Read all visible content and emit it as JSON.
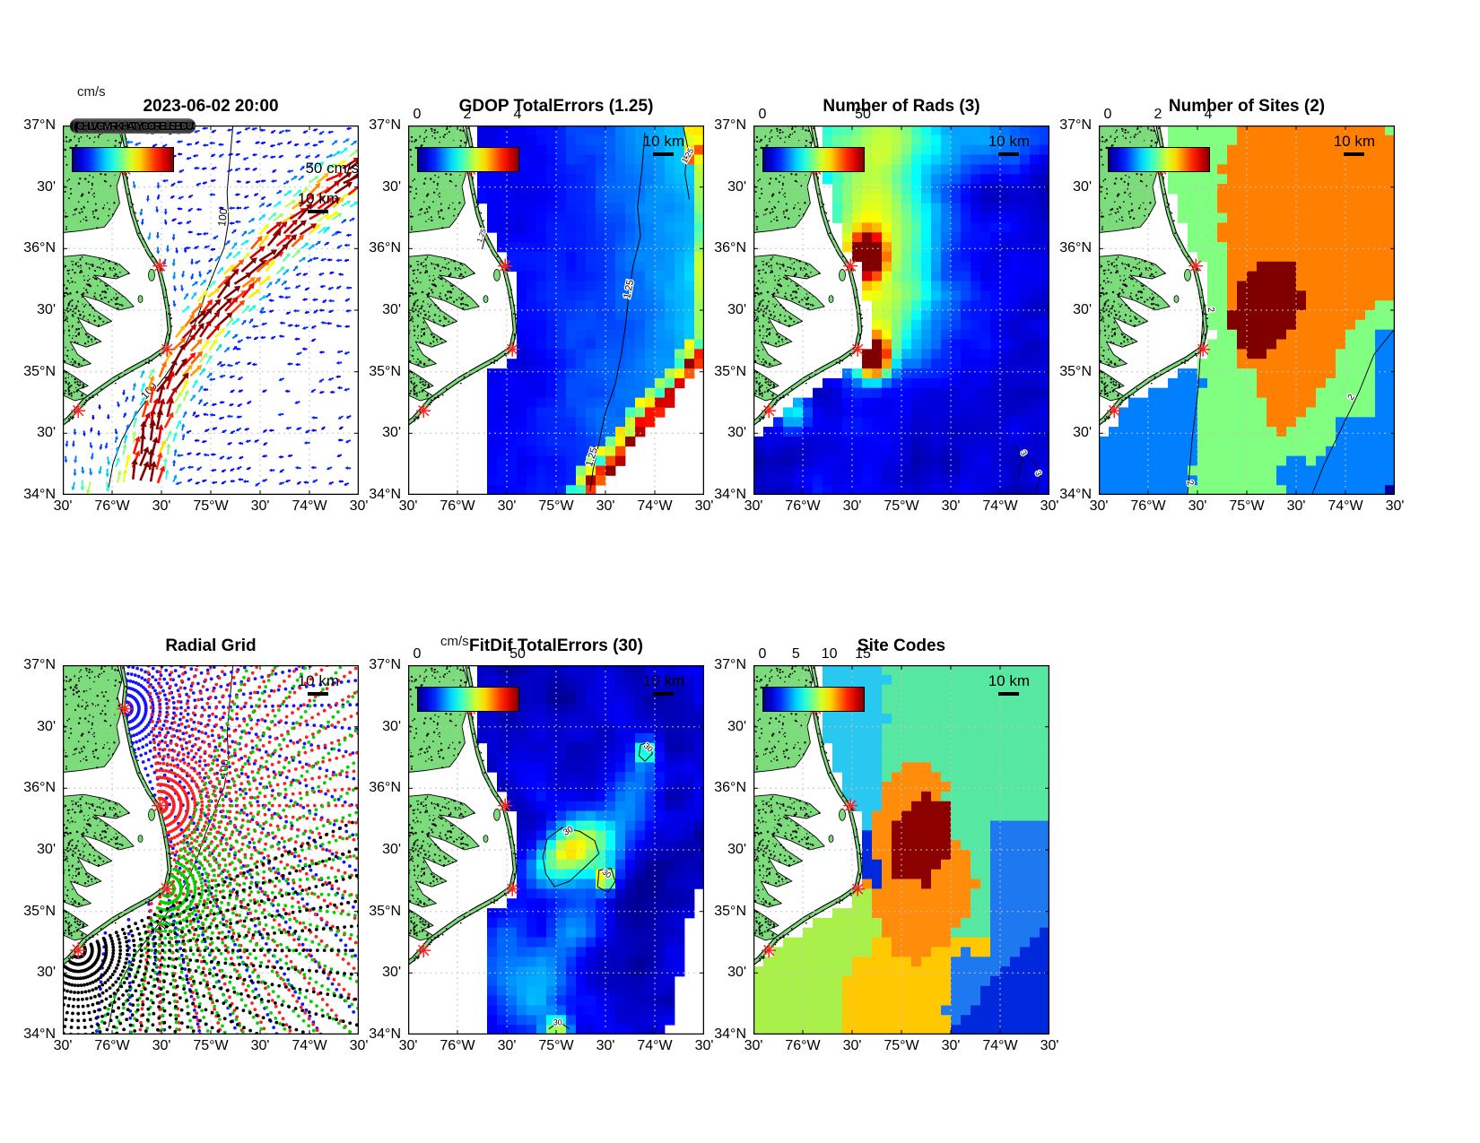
{
  "shared": {
    "scalebar_label": "10 km",
    "y_tick_labels": [
      "37°N",
      "30'",
      "36°N",
      "30'",
      "35°N",
      "30'",
      "34°N"
    ],
    "x_tick_labels": [
      "30'",
      "76°W",
      "30'",
      "75°W",
      "30'",
      "74°W",
      "30'"
    ],
    "land_color": "#7CDC7C",
    "site_marker_color": "#FF2020",
    "colormap": "jet"
  },
  "chart_data": {
    "type": "heatmap",
    "figure_kind": "multi-panel HF-radar ocean current QC maps",
    "geo": {
      "lat_ticks": [
        "37°N",
        "30'",
        "36°N",
        "30'",
        "35°N",
        "30'",
        "34°N"
      ],
      "lon_ticks": [
        "30'",
        "76°W",
        "30'",
        "75°W",
        "30'",
        "74°W",
        "30'"
      ]
    },
    "radar_sites_normalized_xy": [
      [
        0.21,
        0.118
      ],
      [
        0.328,
        0.38
      ],
      [
        0.352,
        0.606
      ],
      [
        0.052,
        0.772
      ]
    ],
    "panels": [
      {
        "id": "surface-currents",
        "title": "2023-06-02 20:00",
        "type": "quiver",
        "cb_units": "cm/s",
        "range": [
          0,
          50
        ],
        "vector_scale_label": "50 cm/s",
        "smudge_text": "((CHLVGMRKHATYCORELISBDUCKWDSDMNSCPHN01245))",
        "depth_contour_label": "100",
        "description": "Surface current vectors; strong NE-flowing jet (up to ~50 cm/s, dark red) from Cape Lookout toward the NE offshore; weak blue southward/westward flow elsewhere"
      },
      {
        "id": "gdop-total-errors",
        "title": "GDOP TotalErrors (1.25)",
        "type": "heatmap",
        "range": [
          0,
          4
        ],
        "cb_ticks": [
          "0",
          "2",
          "4"
        ],
        "contour_label": "1.25",
        "description": "GDOP mostly 0.5-1 (blue) nearshore, rising past 1.25 (cyan contour) offshore, 3-4 (red/dark red) along the SE data edge"
      },
      {
        "id": "number-of-rads",
        "title": "Number of Rads (3)",
        "type": "heatmap",
        "range": [
          0,
          50
        ],
        "cb_ticks": [
          "0",
          "50"
        ],
        "contour_label": "3",
        "description": "Radial counts: ~50 (dark red) hotspots at two coastal radar sites, 15-30 band near the coast, fading to <10 (blue) offshore"
      },
      {
        "id": "number-of-sites",
        "title": "Number of Sites (2)",
        "type": "regions",
        "range": [
          0,
          4
        ],
        "cb_ticks": [
          "0",
          "2",
          "4"
        ],
        "contour_label": "2",
        "region_values": {
          "1": "#0080FF",
          "2": "#80FF80",
          "3": "#FF8000",
          "4": "#800000"
        },
        "description": "Discrete site-count map: 2 sites (green) over most of the domain, 3 (orange) in a broad central lobe, 4 (dark red) core, 1 (blue) near lower coast, right edge and SE corner"
      },
      {
        "id": "radial-grid",
        "title": "Radial Grid",
        "type": "radials",
        "dot_colors": [
          "#1414FF",
          "#FF1E1E",
          "#00D200",
          "#000000"
        ],
        "depth_contour_label": "100",
        "description": "Polar measurement grids (range rings / bearings) of 4 radar sites marked by red asterisks: blue, red, green and black dot fans"
      },
      {
        "id": "fitdif-total-errors",
        "title": "FitDif TotalErrors (30)",
        "type": "heatmap",
        "cb_units": "cm/s",
        "range": [
          0,
          50
        ],
        "cb_ticks": [
          "0",
          "50"
        ],
        "contour_label": "30",
        "description": "Fit-difference errors mostly 5-15 cm/s (blue/cyan) with >30 cm/s (yellow/orange) patches mid-domain, upper right and bottom, outlined by 30-contours"
      },
      {
        "id": "site-codes",
        "title": "Site Codes",
        "type": "regions",
        "range": [
          0,
          15
        ],
        "cb_ticks": [
          "0",
          "5",
          "10",
          "15"
        ],
        "region_values": {
          "cyan": "#28C8F0",
          "teal": "#56E8A2",
          "dark_red": "#8C0000",
          "orange": "#FF8C0A",
          "amber": "#FFC800",
          "yellow_green": "#AAF04B",
          "blue": "#1E78F0",
          "royal_blue": "#0028DC"
        },
        "description": "Dominant site-combination code regions: cyan NW, teal NE, dark-red core, orange center, amber S, yellow-green SW, blue E, royal-blue SE"
      }
    ]
  }
}
